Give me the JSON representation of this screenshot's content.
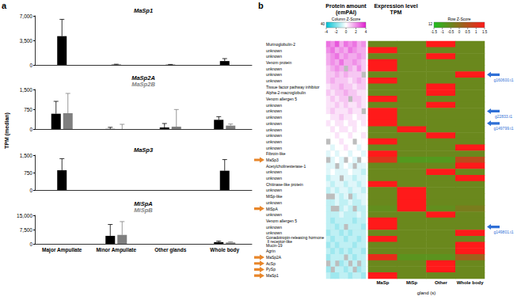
{
  "figure": {
    "panels": [
      "a",
      "b"
    ],
    "ylabel": "TPM (median)"
  },
  "chart_data": [
    {
      "type": "bar",
      "categories": [
        "Major Ampullate",
        "Minor Ampullate",
        "Other glands",
        "Whole body"
      ],
      "series": [
        {
          "name": "MaSp1",
          "color": "#000000",
          "values": [
            4100,
            40,
            30,
            550
          ],
          "errors": [
            2400,
            60,
            40,
            350
          ]
        }
      ],
      "ylim": [
        0,
        7000
      ],
      "yticks": [
        0,
        3500,
        7000
      ],
      "grid": false,
      "tick_labels": "y"
    },
    {
      "type": "bar",
      "categories": [
        "Major Ampullate",
        "Minor Ampullate",
        "Other glands",
        "Whole body"
      ],
      "series": [
        {
          "name": "MaSp2A",
          "color": "#000000",
          "values": [
            580,
            5,
            60,
            350
          ],
          "errors": [
            470,
            60,
            150,
            120
          ]
        },
        {
          "name": "MaSp2B",
          "color": "#7f7f7f",
          "values": [
            600,
            0,
            90,
            130
          ],
          "errors": [
            750,
            180,
            650,
            60
          ]
        }
      ],
      "ylim": [
        0,
        1500
      ],
      "yticks": [
        0,
        750,
        1500
      ],
      "grid": false,
      "tick_labels": "y"
    },
    {
      "type": "bar",
      "categories": [
        "Major Ampullate",
        "Minor Ampullate",
        "Other glands",
        "Whole body"
      ],
      "series": [
        {
          "name": "MaSp3",
          "color": "#000000",
          "values": [
            850,
            0,
            0,
            830
          ],
          "errors": [
            500,
            0,
            0,
            480
          ]
        }
      ],
      "ylim": [
        0,
        1500
      ],
      "yticks": [
        0,
        750,
        1500
      ],
      "grid": false,
      "tick_labels": "y"
    },
    {
      "type": "bar",
      "categories": [
        "Major Ampullate",
        "Minor Ampullate",
        "Other glands",
        "Whole body"
      ],
      "series": [
        {
          "name": "MiSpA",
          "color": "#000000",
          "values": [
            0,
            4200,
            0,
            900
          ],
          "errors": [
            0,
            6000,
            0,
            500
          ]
        },
        {
          "name": "MiSpB",
          "color": "#7f7f7f",
          "values": [
            0,
            4700,
            0,
            700
          ],
          "errors": [
            0,
            7000,
            0,
            400
          ]
        }
      ],
      "ylim": [
        0,
        15000
      ],
      "yticks": [
        0,
        7500,
        15000
      ],
      "grid": false
    },
    {
      "type": "heatmap",
      "columns": [
        "MaSp",
        "MiSp",
        "Other",
        "Whole body"
      ],
      "xlabel": "gland (s)",
      "rows": [
        {
          "label": "Murinoglobulin-2"
        },
        {
          "label": "unknown"
        },
        {
          "label": "unknown"
        },
        {
          "label": "Venom protein"
        },
        {
          "label": "unknown"
        },
        {
          "label": "unknown",
          "color": "#2f6fd6",
          "annotation": "g160600.t1"
        },
        {
          "label": "unknown"
        },
        {
          "label": "Tissue factor pathway inhibitor"
        },
        {
          "label": "Alpha-2-macroglobulin"
        },
        {
          "label": "Venom allergen 5"
        },
        {
          "label": "unknown"
        },
        {
          "label": "unknown",
          "color": "#2f6fd6",
          "annotation": "g22833.t1"
        },
        {
          "label": "unknown"
        },
        {
          "label": "unknown",
          "color": "#2f6fd6",
          "annotation": "g149799.t1"
        },
        {
          "label": "unknown"
        },
        {
          "label": "unknown"
        },
        {
          "label": "unknown"
        },
        {
          "label": "unknown"
        },
        {
          "label": "Fibroin-like"
        },
        {
          "label": "MaSp3",
          "color": "#e8862a"
        },
        {
          "label": "Acetylcholinesterase-1"
        },
        {
          "label": "unknown"
        },
        {
          "label": "unknown"
        },
        {
          "label": "Chitinase-like protein"
        },
        {
          "label": "unknown"
        },
        {
          "label": "MiSp-like"
        },
        {
          "label": "unknown"
        },
        {
          "label": "MiSpA",
          "color": "#e8862a"
        },
        {
          "label": "unknown"
        },
        {
          "label": "Venom allergen 5"
        },
        {
          "label": "unknown",
          "color": "#2f6fd6",
          "annotation": "g149801.t1"
        },
        {
          "label": "unknown"
        },
        {
          "label": "Gonadotropin-releasing hormone II receptor-like"
        },
        {
          "label": "Mucin-19"
        },
        {
          "label": "Agrin"
        },
        {
          "label": "MaSp2A",
          "color": "#e8862a"
        },
        {
          "label": "AcSp",
          "color": "#e8862a"
        },
        {
          "label": "PySp",
          "color": "#e8862a"
        },
        {
          "label": "MaSp1",
          "color": "#e8862a"
        }
      ],
      "protein": {
        "title": "Protein amount\n(emPAI)",
        "colorbar": {
          "label": "Column Z-Score",
          "range": [
            -4,
            4
          ],
          "ticks": [
            -4,
            -2,
            0,
            2,
            4
          ],
          "colors": [
            "#00c2d4",
            "#ffffff",
            "#e01fd0"
          ],
          "count_max": 40
        },
        "values": [
          [
            2.5,
            2,
            3,
            1.5,
            2.5,
            2,
            2.5,
            1.5,
            2
          ],
          [
            2,
            2.5,
            1.5,
            2,
            1.5,
            2.5,
            2,
            1.5,
            1.5
          ],
          [
            1.5,
            2,
            2.5,
            1.5,
            2,
            1.5,
            1.5,
            2,
            1.5
          ],
          [
            1.5,
            2,
            1.5,
            2.5,
            1.5,
            1.5,
            2,
            1.5,
            1
          ],
          [
            1,
            1.5,
            2,
            1.5,
            null,
            1.5,
            1,
            2,
            1
          ],
          [
            1,
            1,
            1.5,
            1,
            1.5,
            1,
            1,
            1,
            null
          ],
          [
            1,
            1.5,
            1,
            1,
            1,
            0.5,
            1,
            1.5,
            1
          ],
          [
            0.5,
            1,
            1,
            1.5,
            1,
            1,
            0.5,
            1,
            1
          ],
          [
            1,
            0.5,
            1,
            1,
            1.5,
            1,
            1,
            0.5,
            0.5
          ],
          [
            0.5,
            1,
            0.5,
            1,
            1,
            null,
            1,
            1,
            0.5
          ],
          [
            0.5,
            0.5,
            1,
            0.5,
            1,
            0.5,
            0.5,
            1,
            0.5
          ],
          [
            0.5,
            1,
            0.5,
            0.5,
            0.5,
            1,
            0.5,
            0.5,
            null
          ],
          [
            0,
            0.5,
            0.5,
            1,
            0.5,
            0.5,
            0,
            0.5,
            0.5
          ],
          [
            0.5,
            0,
            0.5,
            0.5,
            0,
            0.5,
            0.5,
            0,
            0.5
          ],
          [
            0,
            0.5,
            0,
            0.5,
            0.5,
            0,
            0.5,
            0,
            0
          ],
          [
            0,
            0,
            0.5,
            0,
            0,
            0.5,
            0,
            0,
            0.5
          ],
          [
            null,
            0,
            0,
            0.5,
            0,
            0,
            null,
            0,
            0
          ],
          [
            0,
            -0.5,
            0,
            0,
            0.5,
            0,
            0,
            -0.5,
            0
          ],
          [
            -0.5,
            0,
            -0.5,
            0,
            0,
            -0.5,
            0,
            0,
            -0.5
          ],
          [
            null,
            -0.5,
            0,
            -0.5,
            null,
            0,
            -0.5,
            null,
            0
          ],
          [
            -0.5,
            -0.5,
            null,
            -0.5,
            0,
            -0.5,
            null,
            -0.5,
            -0.5
          ],
          [
            -0.5,
            0,
            -0.5,
            -0.5,
            -0.5,
            0,
            -0.5,
            -0.5,
            -1
          ],
          [
            -1,
            -0.5,
            -0.5,
            null,
            -0.5,
            -0.5,
            -1,
            -0.5,
            -0.5
          ],
          [
            -0.5,
            -1,
            -0.5,
            -0.5,
            -1,
            -0.5,
            -0.5,
            -1,
            -0.5
          ],
          [
            -1,
            -0.5,
            -1,
            -0.5,
            -0.5,
            -1,
            -0.5,
            -0.5,
            -1
          ],
          [
            null,
            null,
            -0.5,
            -1,
            -0.5,
            null,
            -1,
            -0.5,
            -0.5
          ],
          [
            -1,
            -1,
            -0.5,
            -1,
            -1,
            -0.5,
            -1,
            -1,
            -0.5
          ],
          [
            -1,
            null,
            null,
            -1,
            -0.5,
            -1,
            null,
            -1,
            -1
          ],
          [
            -1,
            -1,
            -1,
            -0.5,
            -1,
            -1,
            -1,
            -0.5,
            -1
          ],
          [
            -1,
            -1.5,
            -1,
            -1,
            -1,
            -1,
            -1.5,
            -1,
            -1
          ],
          [
            -1,
            -1,
            -1.5,
            -1,
            null,
            -1,
            -1,
            -1,
            -1.5
          ],
          [
            -1.5,
            -1,
            -1,
            -1.5,
            -1,
            -1.5,
            -1,
            -1,
            -1
          ],
          [
            -1,
            -1.5,
            -1,
            -1,
            -1.5,
            -1,
            -1,
            -1.5,
            -1
          ],
          [
            -1.5,
            -1,
            -1.5,
            -1,
            -1,
            -1,
            -1.5,
            -1,
            -1
          ],
          [
            -1,
            -1.5,
            -1,
            -1.5,
            -1,
            -1.5,
            -1,
            -1,
            -1.5
          ],
          [
            -1.5,
            -1,
            -1,
            -1,
            null,
            -1,
            -1.5,
            -1,
            -1
          ],
          [
            null,
            -1,
            null,
            -1.5,
            -1,
            null,
            -1,
            null,
            -1
          ],
          [
            -1.5,
            null,
            -1,
            -1,
            -1.5,
            -1,
            null,
            -1.5,
            -1
          ],
          [
            -1,
            -1.5,
            -1.5,
            -1,
            -1,
            -1.5,
            -1,
            -1,
            -1.5
          ]
        ]
      },
      "expression": {
        "title": "Expression level\nTPM",
        "colorbar": {
          "label": "Row Z-Score",
          "range": [
            -1.5,
            1.5
          ],
          "ticks": [
            -1.5,
            -1,
            -0.5,
            0,
            0.5,
            1,
            1.5
          ],
          "colors": [
            "#1fbf1f",
            "#ff1a1a"
          ],
          "count_max": 12
        },
        "values": [
          [
            -0.5,
            -0.5,
            1.5,
            -0.5
          ],
          [
            1.5,
            -0.5,
            -0.5,
            -0.5
          ],
          [
            -0.5,
            -0.5,
            1.5,
            -0.5
          ],
          [
            1.5,
            -0.5,
            -0.5,
            -0.5
          ],
          [
            1.5,
            -0.5,
            -0.5,
            -0.5
          ],
          [
            -0.5,
            -0.5,
            -0.5,
            1.5
          ],
          [
            1.5,
            -0.5,
            -0.5,
            -0.5
          ],
          [
            -0.5,
            -0.5,
            1.5,
            -0.5
          ],
          [
            -0.5,
            -0.5,
            1.5,
            -0.5
          ],
          [
            1.5,
            -0.5,
            -0.5,
            -0.5
          ],
          [
            -0.5,
            -0.5,
            1.5,
            -0.5
          ],
          [
            1.5,
            -0.5,
            -0.5,
            -0.5
          ],
          [
            1.5,
            -0.5,
            -0.5,
            -0.5
          ],
          [
            1.5,
            -0.5,
            -0.5,
            -0.5
          ],
          [
            -0.5,
            1.5,
            -0.5,
            -0.5
          ],
          [
            -0.5,
            -0.5,
            1.5,
            -0.5
          ],
          [
            1.5,
            -0.5,
            -0.5,
            -0.5
          ],
          [
            -0.5,
            -0.5,
            -0.5,
            1.5
          ],
          [
            1.5,
            -0.5,
            -0.5,
            -0.5
          ],
          [
            1,
            -0.8,
            -0.8,
            0.6
          ],
          [
            -0.5,
            -0.5,
            -0.5,
            1.5
          ],
          [
            -0.5,
            -0.5,
            1.5,
            -0.5
          ],
          [
            -0.5,
            -0.5,
            -0.5,
            1.5
          ],
          [
            1.5,
            -0.5,
            -0.5,
            -0.5
          ],
          [
            -0.5,
            1.5,
            -0.5,
            -0.5
          ],
          [
            -0.5,
            1.5,
            -0.5,
            -0.5
          ],
          [
            -0.5,
            1.5,
            -0.5,
            -0.5
          ],
          [
            -0.6,
            1.5,
            -0.6,
            -0.3
          ],
          [
            -0.5,
            -0.5,
            1.5,
            -0.5
          ],
          [
            1.5,
            -0.5,
            -0.5,
            -0.5
          ],
          [
            1.5,
            -0.5,
            -0.5,
            -0.5
          ],
          [
            -0.5,
            -0.5,
            -0.5,
            1.5
          ],
          [
            1.5,
            -0.5,
            -0.5,
            -0.5
          ],
          [
            -0.5,
            -0.5,
            -0.5,
            1.5
          ],
          [
            -0.5,
            -0.5,
            -0.5,
            1.5
          ],
          [
            1.2,
            -0.7,
            -0.7,
            0.2
          ],
          [
            -0.5,
            -0.5,
            1.5,
            -0.5
          ],
          [
            -0.5,
            -0.5,
            1.5,
            -0.5
          ],
          [
            1.5,
            -0.5,
            -0.5,
            -0.5
          ]
        ]
      },
      "tick_labels": "y"
    }
  ]
}
